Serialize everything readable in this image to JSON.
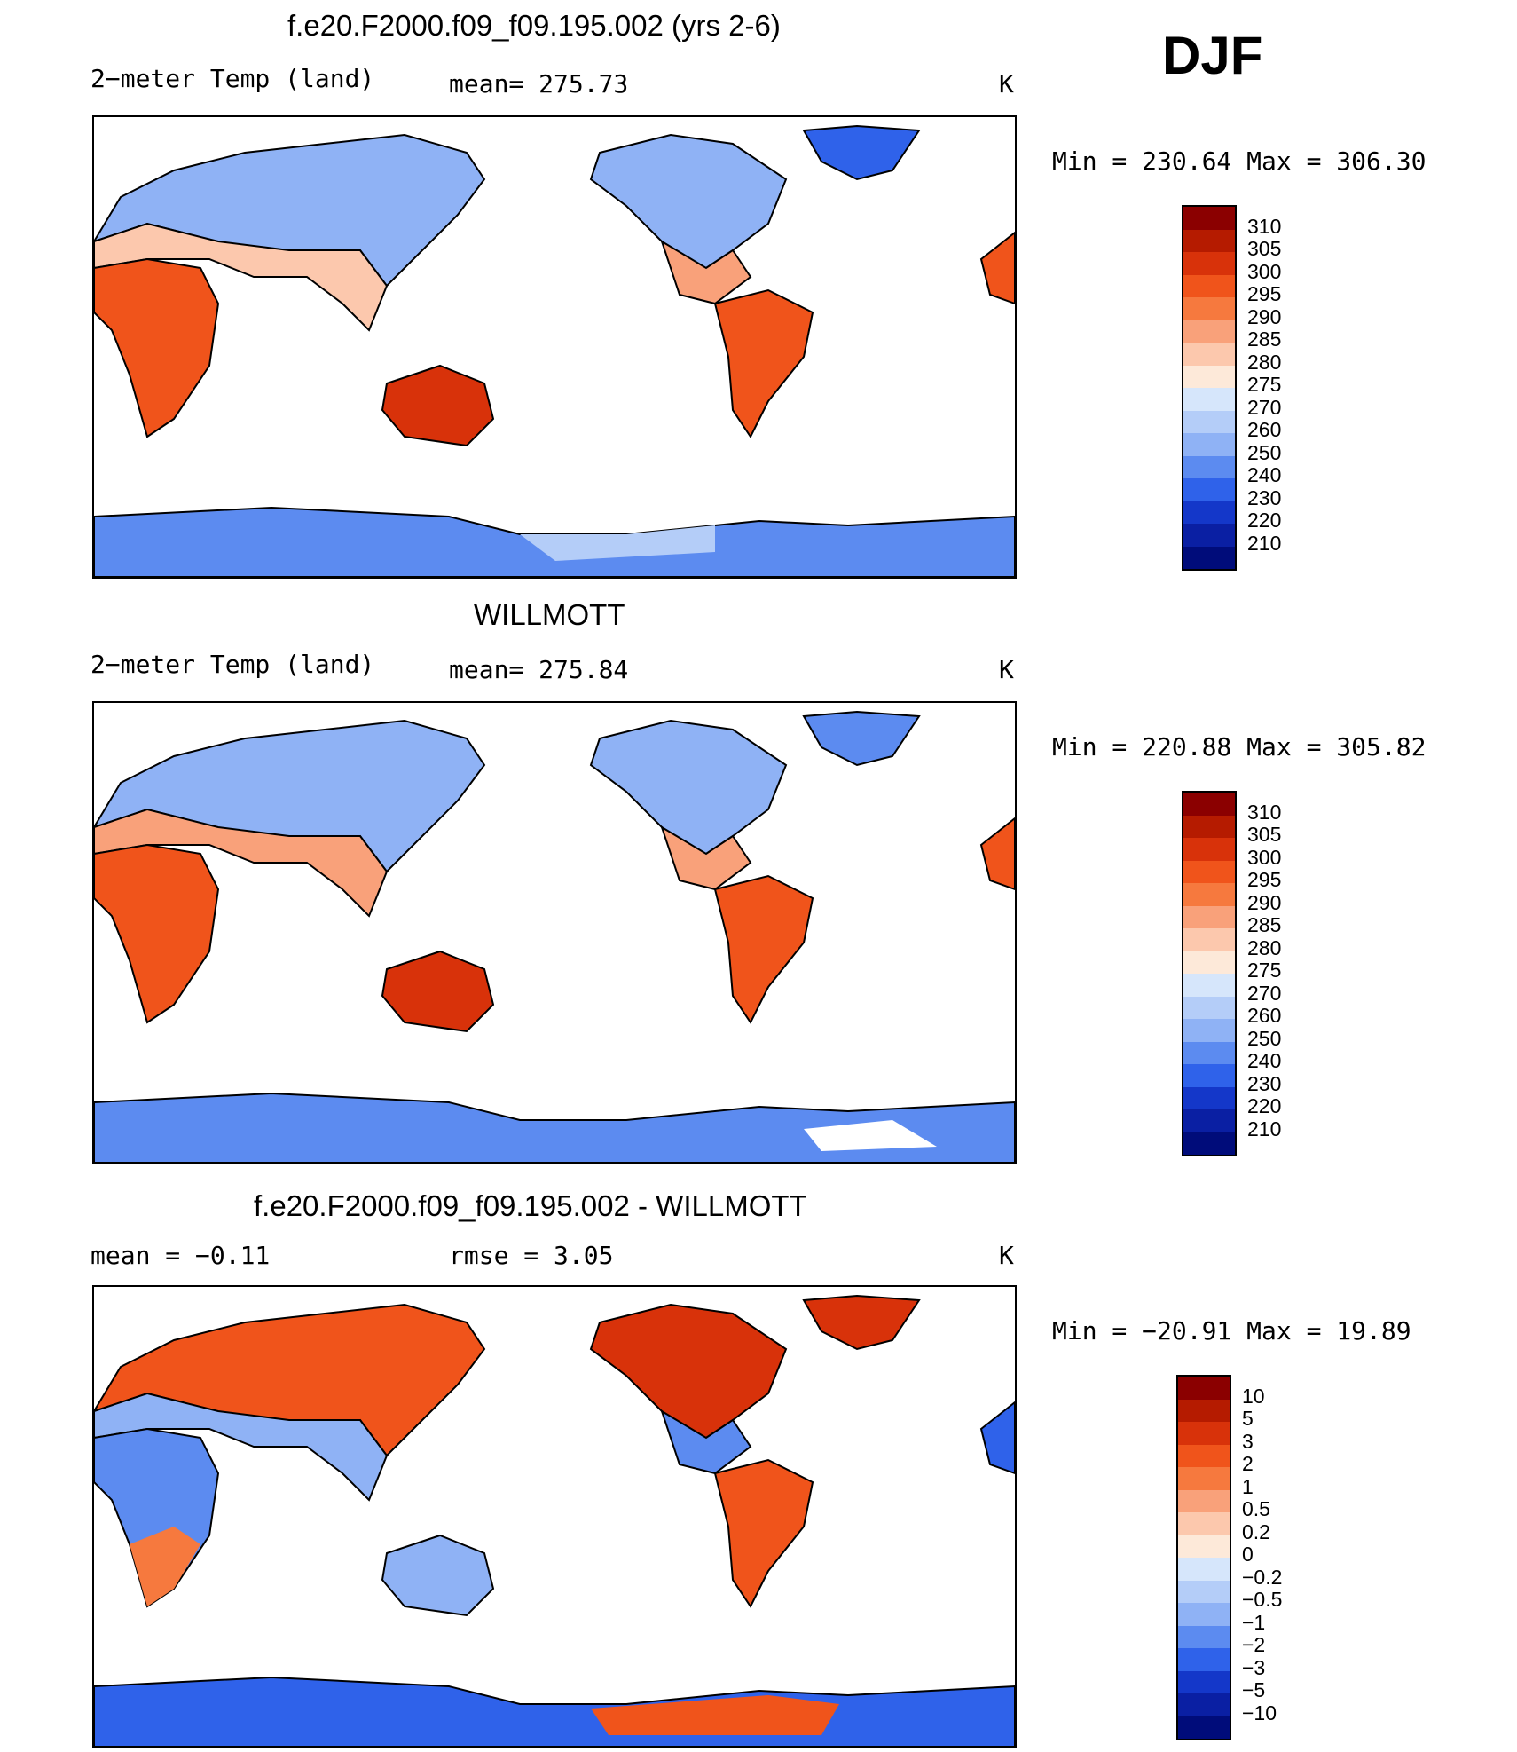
{
  "season": "DJF",
  "panels": [
    {
      "title": "f.e20.F2000.f09_f09.195.002 (yrs 2-6)",
      "left_label": "2−meter Temp (land)",
      "center_label": "mean= 275.73",
      "units": "K",
      "minmax": "Min = 230.64 Max = 306.30"
    },
    {
      "title": "WILLMOTT",
      "left_label": "2−meter Temp (land)",
      "center_label": "mean= 275.84",
      "units": "K",
      "minmax": "Min = 220.88 Max = 305.82"
    },
    {
      "title": "f.e20.F2000.f09_f09.195.002 - WILLMOTT",
      "left_label": "mean =  −0.11",
      "center_label": "rmse =   3.05",
      "units": "K",
      "minmax": "Min = −20.91 Max =  19.89"
    }
  ],
  "colorbars": {
    "temperature": {
      "labels": [
        "310",
        "305",
        "300",
        "295",
        "290",
        "285",
        "280",
        "275",
        "270",
        "260",
        "250",
        "240",
        "230",
        "220",
        "210"
      ],
      "colors": [
        "#8b0000",
        "#b51b00",
        "#d8320a",
        "#f0541b",
        "#f6793e",
        "#f9a17a",
        "#fcc8ad",
        "#fde9d9",
        "#d6e6fb",
        "#b4cdf8",
        "#8fb2f5",
        "#5c8bf0",
        "#2f62ea",
        "#1437c9",
        "#0a1fa3",
        "#000c7a"
      ]
    },
    "difference": {
      "labels": [
        "10",
        "5",
        "3",
        "2",
        "1",
        "0.5",
        "0.2",
        "0",
        "−0.2",
        "−0.5",
        "−1",
        "−2",
        "−3",
        "−5",
        "−10"
      ],
      "colors": [
        "#8b0000",
        "#b51b00",
        "#d8320a",
        "#f0541b",
        "#f6793e",
        "#f9a17a",
        "#fcc8ad",
        "#fde9d9",
        "#d6e6fb",
        "#b4cdf8",
        "#8fb2f5",
        "#5c8bf0",
        "#2f62ea",
        "#1437c9",
        "#0a1fa3",
        "#000c7a"
      ]
    }
  },
  "colors": {
    "ocean": "#ffffff",
    "coast": "#000000"
  }
}
